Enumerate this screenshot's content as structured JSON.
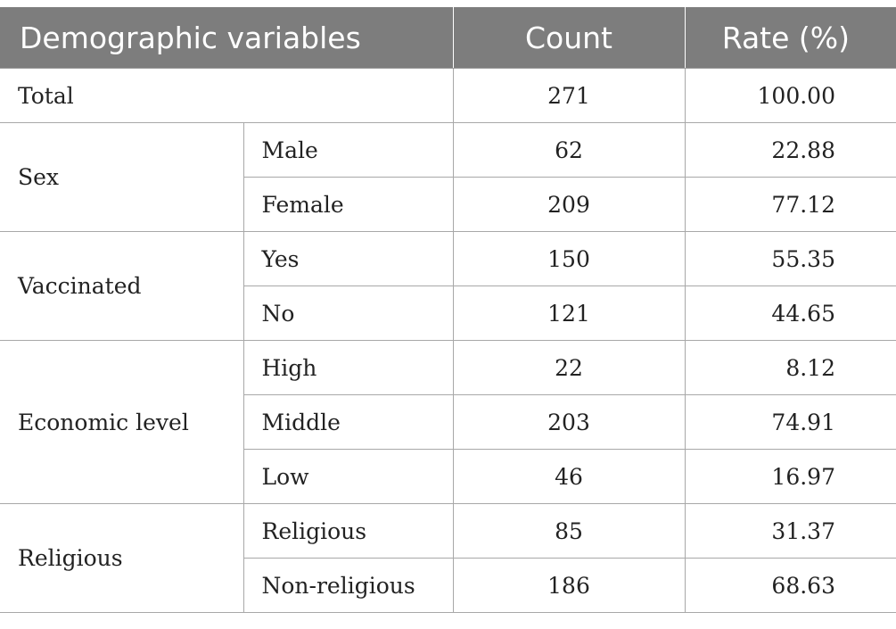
{
  "header": {
    "variable": "Demographic variables",
    "count": "Count",
    "rate": "Rate (%)"
  },
  "total": {
    "label": "Total",
    "count": "271",
    "rate": "100.00"
  },
  "groups": [
    {
      "label": "Sex",
      "rows": [
        {
          "sub": "Male",
          "count": "62",
          "rate": "22.88"
        },
        {
          "sub": "Female",
          "count": "209",
          "rate": "77.12"
        }
      ]
    },
    {
      "label": "Vaccinated",
      "rows": [
        {
          "sub": "Yes",
          "count": "150",
          "rate": "55.35"
        },
        {
          "sub": "No",
          "count": "121",
          "rate": "44.65"
        }
      ]
    },
    {
      "label": "Economic level",
      "rows": [
        {
          "sub": "High",
          "count": "22",
          "rate": "8.12"
        },
        {
          "sub": "Middle",
          "count": "203",
          "rate": "74.91"
        },
        {
          "sub": "Low",
          "count": "46",
          "rate": "16.97"
        }
      ]
    },
    {
      "label": "Religious",
      "rows": [
        {
          "sub": "Religious",
          "count": "85",
          "rate": "31.37"
        },
        {
          "sub": "Non-religious",
          "count": "186",
          "rate": "68.63"
        }
      ]
    }
  ]
}
